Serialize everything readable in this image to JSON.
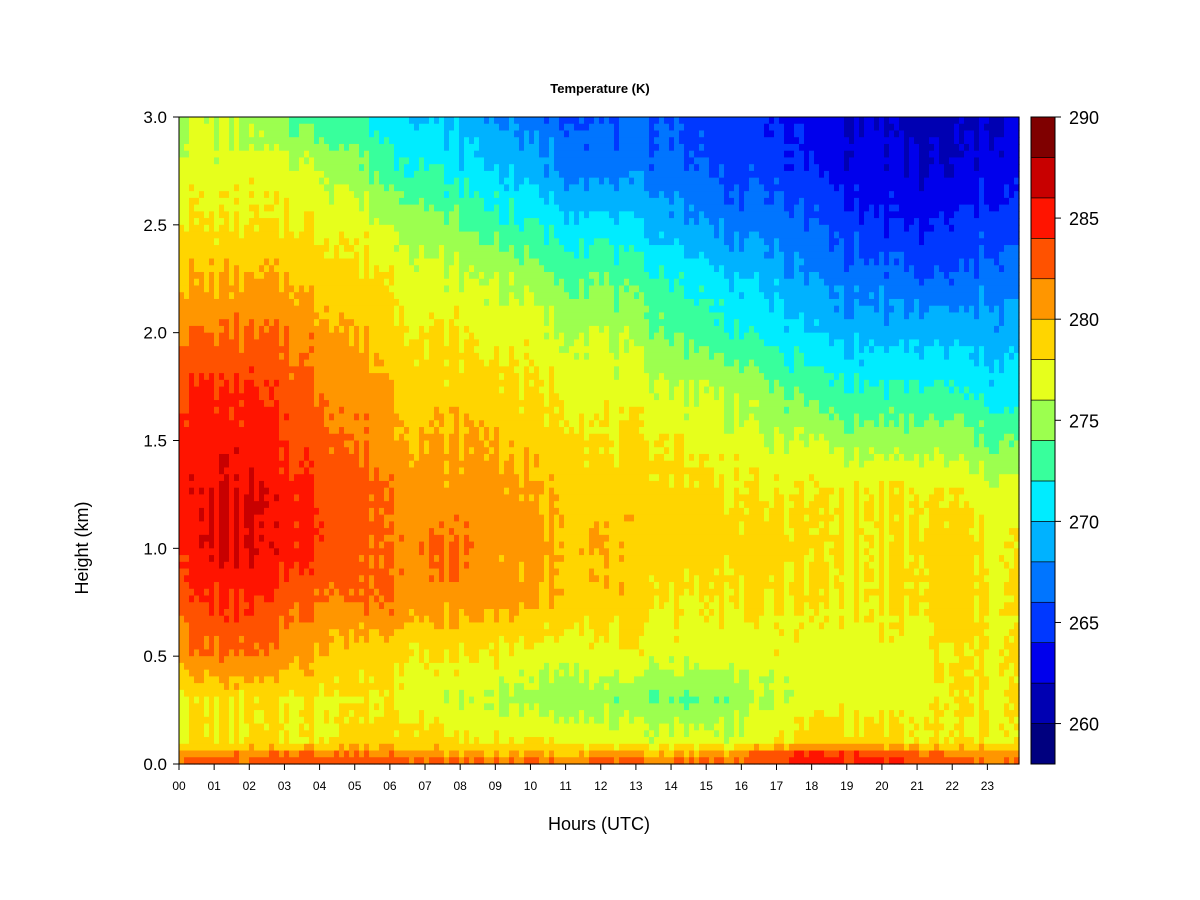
{
  "chart_data": {
    "type": "heatmap",
    "title": "Temperature (K)",
    "xlabel": "Hours (UTC)",
    "ylabel": "Height (km)",
    "xlim": [
      0,
      23.9
    ],
    "ylim": [
      0.0,
      3.0
    ],
    "x_ticks": [
      "00",
      "01",
      "02",
      "03",
      "04",
      "05",
      "06",
      "07",
      "08",
      "09",
      "10",
      "11",
      "12",
      "13",
      "14",
      "15",
      "16",
      "17",
      "18",
      "19",
      "20",
      "21",
      "22",
      "23"
    ],
    "y_ticks": [
      "0.0",
      "0.5",
      "1.0",
      "1.5",
      "2.0",
      "2.5",
      "3.0"
    ],
    "heights_km": [
      0.0,
      0.05,
      0.1,
      0.3,
      0.5,
      0.75,
      1.0,
      1.25,
      1.5,
      1.75,
      2.0,
      2.25,
      2.5,
      2.75,
      3.0
    ],
    "hours": [
      0,
      1,
      2,
      3,
      4,
      5,
      6,
      7,
      8,
      9,
      10,
      11,
      12,
      13,
      14,
      15,
      16,
      17,
      18,
      19,
      20,
      21,
      22,
      23
    ],
    "temperature_K": [
      [
        283,
        283,
        283,
        283,
        284,
        284,
        284,
        283,
        283,
        283,
        283,
        283,
        283,
        283,
        283,
        283,
        283,
        284,
        285,
        285,
        285,
        284,
        283,
        282
      ],
      [
        281,
        281,
        281,
        282,
        282,
        282,
        282,
        281,
        280,
        280,
        280,
        280,
        280,
        280,
        280,
        280,
        281,
        283,
        284,
        284,
        283,
        282,
        281,
        281
      ],
      [
        278,
        278,
        278,
        278,
        278,
        279,
        279,
        279,
        278,
        278,
        278,
        278,
        277,
        277,
        277,
        277,
        277,
        278,
        279,
        279,
        279,
        278,
        278,
        278
      ],
      [
        278,
        278,
        278,
        278,
        278,
        278,
        278,
        277,
        276,
        276,
        275,
        275,
        275,
        274,
        274,
        274,
        275,
        276,
        277,
        277,
        277,
        277,
        278,
        278
      ],
      [
        281,
        282,
        282,
        281,
        280,
        279,
        279,
        278,
        278,
        278,
        277,
        277,
        277,
        277,
        277,
        277,
        277,
        277,
        277,
        277,
        277,
        277,
        278,
        278
      ],
      [
        283,
        284,
        284,
        283,
        282,
        282,
        282,
        281,
        281,
        281,
        280,
        280,
        279,
        279,
        278,
        278,
        278,
        278,
        278,
        278,
        278,
        278,
        279,
        278
      ],
      [
        285,
        286,
        286,
        285,
        284,
        283,
        282,
        282,
        282,
        281,
        281,
        280,
        280,
        279,
        279,
        279,
        279,
        279,
        278,
        278,
        278,
        278,
        279,
        278
      ],
      [
        285,
        286,
        286,
        285,
        284,
        283,
        282,
        281,
        281,
        281,
        280,
        280,
        279,
        279,
        279,
        279,
        278,
        278,
        278,
        278,
        278,
        278,
        278,
        277
      ],
      [
        285,
        285,
        285,
        284,
        283,
        282,
        281,
        280,
        280,
        280,
        279,
        279,
        278,
        278,
        278,
        277,
        277,
        276,
        276,
        275,
        275,
        275,
        275,
        274
      ],
      [
        284,
        284,
        284,
        283,
        282,
        281,
        280,
        279,
        279,
        279,
        278,
        278,
        277,
        277,
        276,
        276,
        275,
        274,
        273,
        272,
        272,
        272,
        272,
        271
      ],
      [
        282,
        282,
        282,
        282,
        281,
        280,
        279,
        278,
        278,
        277,
        277,
        276,
        276,
        275,
        274,
        273,
        272,
        271,
        270,
        269,
        269,
        269,
        269,
        269
      ],
      [
        280,
        280,
        280,
        280,
        279,
        279,
        278,
        277,
        276,
        276,
        275,
        274,
        274,
        273,
        272,
        271,
        270,
        269,
        268,
        267,
        267,
        266,
        266,
        267
      ],
      [
        278,
        278,
        278,
        278,
        278,
        277,
        276,
        275,
        274,
        273,
        272,
        271,
        271,
        270,
        269,
        268,
        267,
        267,
        266,
        265,
        264,
        264,
        264,
        265
      ],
      [
        277,
        277,
        277,
        277,
        276,
        275,
        273,
        272,
        271,
        270,
        269,
        268,
        267,
        267,
        267,
        266,
        265,
        265,
        264,
        263,
        263,
        262,
        262,
        263
      ],
      [
        276,
        276,
        275,
        274,
        273,
        272,
        271,
        270,
        269,
        268,
        267,
        266,
        266,
        266,
        266,
        265,
        265,
        264,
        263,
        262,
        262,
        261,
        261,
        262
      ]
    ],
    "colorbar": {
      "min": 258,
      "max": 290,
      "step": 2,
      "ticks": [
        "260",
        "265",
        "270",
        "275",
        "280",
        "285",
        "290"
      ],
      "colors": [
        "#00007f",
        "#0000b2",
        "#0000ec",
        "#0038ff",
        "#0075ff",
        "#00b2ff",
        "#00ecff",
        "#38ff9c",
        "#9cff4f",
        "#e6ff1c",
        "#ffd500",
        "#ff9600",
        "#ff5200",
        "#ff1400",
        "#c80000",
        "#7f0000"
      ]
    }
  }
}
